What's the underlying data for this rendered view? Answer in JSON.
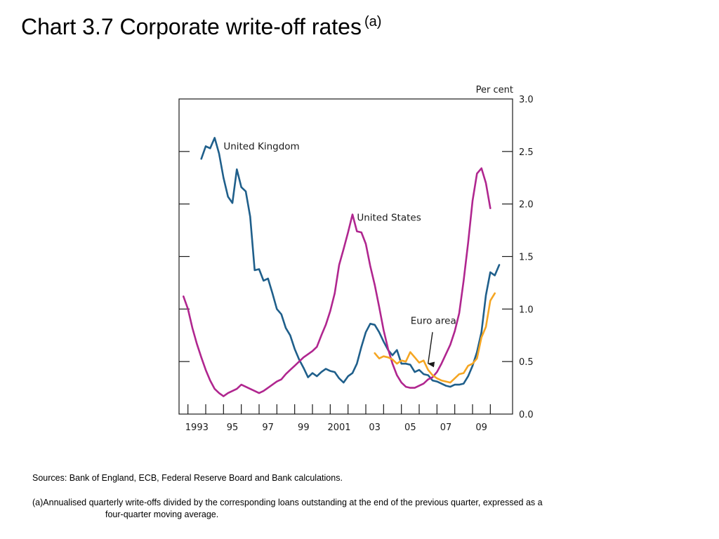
{
  "slide": {
    "title": "Chart 3.7  Corporate write-off rates",
    "title_superscript": "(a)",
    "sources": "Sources:  Bank of England, ECB, Federal Reserve Board and Bank calculations.",
    "footnote_line1": "(a)Annualised quarterly write-offs divided by the corresponding loans outstanding at the end of the previous quarter, expressed as a",
    "footnote_line2": "four-quarter  moving average."
  },
  "chart_data": {
    "type": "line",
    "title": "Chart 3.7  Corporate write-off rates",
    "y_unit_label": "Per cent",
    "ylim": [
      0.0,
      3.0
    ],
    "y_ticks": [
      0.0,
      0.5,
      1.0,
      1.5,
      2.0,
      2.5,
      3.0
    ],
    "y_tick_labels": [
      "0.0",
      "0.5",
      "1.0",
      "1.5",
      "2.0",
      "2.5",
      "3.0"
    ],
    "xlim": [
      1992.5,
      2011.25
    ],
    "x_ticks": [
      1993,
      1995,
      1997,
      1999,
      2001,
      2003,
      2005,
      2007,
      2009
    ],
    "x_tick_labels": [
      "1993",
      "95",
      "97",
      "99",
      "2001",
      "03",
      "05",
      "07",
      "09"
    ],
    "x_minor_ticks": [
      1993,
      1994,
      1995,
      1996,
      1997,
      1998,
      1999,
      2000,
      2001,
      2002,
      2003,
      2004,
      2005,
      2006,
      2007,
      2008,
      2009,
      2010
    ],
    "y_axis_side": "right",
    "grid": false,
    "series": [
      {
        "name": "United Kingdom",
        "color": "#1f5f8b",
        "points": [
          [
            1993.75,
            2.43
          ],
          [
            1994.0,
            2.55
          ],
          [
            1994.25,
            2.53
          ],
          [
            1994.5,
            2.63
          ],
          [
            1994.75,
            2.48
          ],
          [
            1995.0,
            2.25
          ],
          [
            1995.25,
            2.07
          ],
          [
            1995.5,
            2.01
          ],
          [
            1995.75,
            2.33
          ],
          [
            1996.0,
            2.16
          ],
          [
            1996.25,
            2.12
          ],
          [
            1996.5,
            1.88
          ],
          [
            1996.75,
            1.37
          ],
          [
            1997.0,
            1.38
          ],
          [
            1997.25,
            1.27
          ],
          [
            1997.5,
            1.29
          ],
          [
            1997.75,
            1.15
          ],
          [
            1998.0,
            1.0
          ],
          [
            1998.25,
            0.95
          ],
          [
            1998.5,
            0.82
          ],
          [
            1998.75,
            0.75
          ],
          [
            1999.0,
            0.62
          ],
          [
            1999.25,
            0.52
          ],
          [
            1999.5,
            0.44
          ],
          [
            1999.75,
            0.35
          ],
          [
            2000.0,
            0.39
          ],
          [
            2000.25,
            0.36
          ],
          [
            2000.5,
            0.4
          ],
          [
            2000.75,
            0.43
          ],
          [
            2001.0,
            0.41
          ],
          [
            2001.25,
            0.4
          ],
          [
            2001.5,
            0.34
          ],
          [
            2001.75,
            0.3
          ],
          [
            2002.0,
            0.36
          ],
          [
            2002.25,
            0.39
          ],
          [
            2002.5,
            0.48
          ],
          [
            2002.75,
            0.64
          ],
          [
            2003.0,
            0.78
          ],
          [
            2003.25,
            0.86
          ],
          [
            2003.5,
            0.85
          ],
          [
            2003.75,
            0.78
          ],
          [
            2004.0,
            0.69
          ],
          [
            2004.25,
            0.61
          ],
          [
            2004.5,
            0.56
          ],
          [
            2004.75,
            0.61
          ],
          [
            2005.0,
            0.48
          ],
          [
            2005.25,
            0.48
          ],
          [
            2005.5,
            0.47
          ],
          [
            2005.75,
            0.4
          ],
          [
            2006.0,
            0.42
          ],
          [
            2006.25,
            0.38
          ],
          [
            2006.5,
            0.37
          ],
          [
            2006.75,
            0.32
          ],
          [
            2007.0,
            0.31
          ],
          [
            2007.25,
            0.29
          ],
          [
            2007.5,
            0.27
          ],
          [
            2007.75,
            0.26
          ],
          [
            2008.0,
            0.28
          ],
          [
            2008.25,
            0.28
          ],
          [
            2008.5,
            0.29
          ],
          [
            2008.75,
            0.36
          ],
          [
            2009.0,
            0.46
          ],
          [
            2009.25,
            0.59
          ],
          [
            2009.5,
            0.78
          ],
          [
            2009.75,
            1.13
          ],
          [
            2010.0,
            1.35
          ],
          [
            2010.25,
            1.32
          ],
          [
            2010.5,
            1.42
          ]
        ]
      },
      {
        "name": "United States",
        "color": "#b0268f",
        "points": [
          [
            1992.75,
            1.12
          ],
          [
            1993.0,
            1.0
          ],
          [
            1993.25,
            0.82
          ],
          [
            1993.5,
            0.67
          ],
          [
            1993.75,
            0.54
          ],
          [
            1994.0,
            0.42
          ],
          [
            1994.25,
            0.32
          ],
          [
            1994.5,
            0.24
          ],
          [
            1994.75,
            0.2
          ],
          [
            1995.0,
            0.17
          ],
          [
            1995.25,
            0.2
          ],
          [
            1995.5,
            0.22
          ],
          [
            1995.75,
            0.24
          ],
          [
            1996.0,
            0.28
          ],
          [
            1996.25,
            0.26
          ],
          [
            1996.5,
            0.24
          ],
          [
            1996.75,
            0.22
          ],
          [
            1997.0,
            0.2
          ],
          [
            1997.25,
            0.22
          ],
          [
            1997.5,
            0.25
          ],
          [
            1997.75,
            0.28
          ],
          [
            1998.0,
            0.31
          ],
          [
            1998.25,
            0.33
          ],
          [
            1998.5,
            0.38
          ],
          [
            1998.75,
            0.42
          ],
          [
            1999.0,
            0.46
          ],
          [
            1999.25,
            0.5
          ],
          [
            1999.5,
            0.54
          ],
          [
            1999.75,
            0.57
          ],
          [
            2000.0,
            0.6
          ],
          [
            2000.25,
            0.64
          ],
          [
            2000.5,
            0.75
          ],
          [
            2000.75,
            0.85
          ],
          [
            2001.0,
            0.98
          ],
          [
            2001.25,
            1.15
          ],
          [
            2001.5,
            1.42
          ],
          [
            2001.75,
            1.57
          ],
          [
            2002.0,
            1.73
          ],
          [
            2002.25,
            1.9
          ],
          [
            2002.5,
            1.74
          ],
          [
            2002.75,
            1.73
          ],
          [
            2003.0,
            1.62
          ],
          [
            2003.25,
            1.41
          ],
          [
            2003.5,
            1.23
          ],
          [
            2003.75,
            1.02
          ],
          [
            2004.0,
            0.8
          ],
          [
            2004.25,
            0.62
          ],
          [
            2004.5,
            0.48
          ],
          [
            2004.75,
            0.37
          ],
          [
            2005.0,
            0.3
          ],
          [
            2005.25,
            0.26
          ],
          [
            2005.5,
            0.25
          ],
          [
            2005.75,
            0.25
          ],
          [
            2006.0,
            0.27
          ],
          [
            2006.25,
            0.29
          ],
          [
            2006.5,
            0.33
          ],
          [
            2006.75,
            0.35
          ],
          [
            2007.0,
            0.4
          ],
          [
            2007.25,
            0.48
          ],
          [
            2007.5,
            0.57
          ],
          [
            2007.75,
            0.66
          ],
          [
            2008.0,
            0.79
          ],
          [
            2008.25,
            0.96
          ],
          [
            2008.5,
            1.27
          ],
          [
            2008.75,
            1.63
          ],
          [
            2009.0,
            2.03
          ],
          [
            2009.25,
            2.29
          ],
          [
            2009.5,
            2.34
          ],
          [
            2009.75,
            2.2
          ],
          [
            2010.0,
            1.96
          ]
        ]
      },
      {
        "name": "Euro area",
        "color": "#f5a623",
        "points": [
          [
            2003.5,
            0.58
          ],
          [
            2003.75,
            0.53
          ],
          [
            2004.0,
            0.55
          ],
          [
            2004.25,
            0.54
          ],
          [
            2004.5,
            0.52
          ],
          [
            2004.75,
            0.48
          ],
          [
            2005.0,
            0.51
          ],
          [
            2005.25,
            0.5
          ],
          [
            2005.5,
            0.59
          ],
          [
            2005.75,
            0.54
          ],
          [
            2006.0,
            0.49
          ],
          [
            2006.25,
            0.51
          ],
          [
            2006.5,
            0.42
          ],
          [
            2006.75,
            0.37
          ],
          [
            2007.0,
            0.34
          ],
          [
            2007.25,
            0.32
          ],
          [
            2007.5,
            0.31
          ],
          [
            2007.75,
            0.3
          ],
          [
            2008.0,
            0.34
          ],
          [
            2008.25,
            0.38
          ],
          [
            2008.5,
            0.39
          ],
          [
            2008.75,
            0.46
          ],
          [
            2009.0,
            0.48
          ],
          [
            2009.25,
            0.53
          ],
          [
            2009.5,
            0.73
          ],
          [
            2009.75,
            0.83
          ],
          [
            2010.0,
            1.08
          ],
          [
            2010.25,
            1.15
          ]
        ]
      }
    ],
    "annotations": [
      {
        "text": "United Kingdom",
        "series": "United Kingdom"
      },
      {
        "text": "United States",
        "series": "United States"
      },
      {
        "text": "Euro area",
        "series": "Euro area",
        "arrow_to": [
          2006.5,
          0.48
        ]
      }
    ]
  }
}
